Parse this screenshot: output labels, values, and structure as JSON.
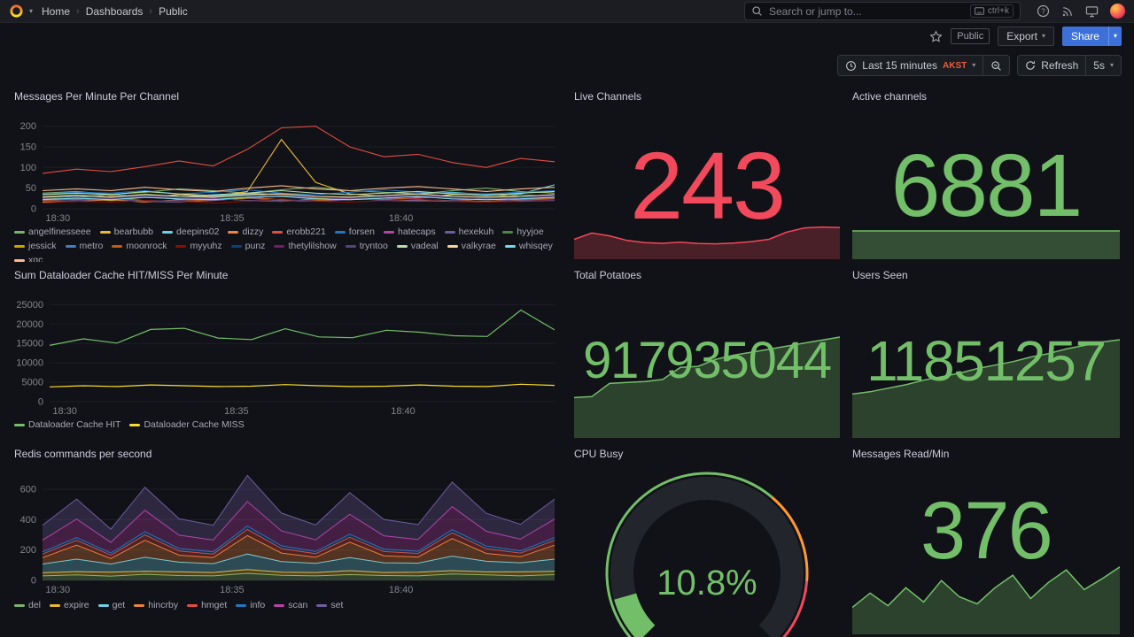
{
  "nav": {
    "breadcrumb": [
      "Home",
      "Dashboards",
      "Public"
    ],
    "search_placeholder": "Search or jump to...",
    "search_shortcut": "ctrl+k"
  },
  "subnav": {
    "badge": "Public",
    "export": "Export",
    "share": "Share"
  },
  "toolbar": {
    "time_range": "Last 15 minutes",
    "timezone": "AKST",
    "refresh": "Refresh",
    "interval": "5s"
  },
  "panels": {
    "messages": {
      "title": "Messages Per Minute Per Channel",
      "chart": {
        "type": "line",
        "axis": true,
        "padL": 32,
        "ymin": 0,
        "ymax": 210,
        "lw": 1.1,
        "yticks": [
          {
            "v": 0,
            "l": "0"
          },
          {
            "v": 50,
            "l": "50"
          },
          {
            "v": 100,
            "l": "100"
          },
          {
            "v": 150,
            "l": "150"
          },
          {
            "v": 200,
            "l": "200"
          }
        ],
        "xticks": [
          {
            "f": 0.03,
            "l": "18:30"
          },
          {
            "f": 0.37,
            "l": "18:35"
          },
          {
            "f": 0.7,
            "l": "18:40"
          }
        ],
        "series": [
          {
            "name": "angelfinesseee",
            "color": "#7EB26D",
            "values": [
              38,
              42,
              35,
              40,
              48,
              44,
              38,
              46,
              52,
              44,
              40,
              36,
              44,
              50,
              42,
              38
            ]
          },
          {
            "name": "bearbubb",
            "color": "#EAB839",
            "values": [
              26,
              22,
              30,
              28,
              34,
              30,
              42,
              168,
              64,
              36,
              30,
              28,
              34,
              36,
              30,
              26
            ]
          },
          {
            "name": "deepins02",
            "color": "#6ED0E0",
            "values": [
              30,
              28,
              34,
              30,
              28,
              34,
              38,
              34,
              30,
              28,
              32,
              36,
              40,
              34,
              36,
              58
            ]
          },
          {
            "name": "dizzy",
            "color": "#EF843C",
            "values": [
              16,
              18,
              22,
              16,
              22,
              26,
              20,
              18,
              24,
              28,
              22,
              20,
              18,
              26,
              30,
              28
            ]
          },
          {
            "name": "erobb221",
            "color": "#E24D42",
            "values": [
              86,
              96,
              90,
              102,
              116,
              104,
              144,
              196,
              200,
              150,
              126,
              132,
              112,
              100,
              122,
              114
            ]
          },
          {
            "name": "forsen",
            "color": "#1F78C1",
            "values": [
              36,
              40,
              38,
              44,
              36,
              40,
              46,
              38,
              34,
              40,
              46,
              40,
              38,
              36,
              40,
              44
            ]
          },
          {
            "name": "hatecaps",
            "color": "#BA43A9",
            "values": [
              24,
              22,
              28,
              30,
              26,
              24,
              28,
              34,
              28,
              24,
              22,
              26,
              30,
              28,
              24,
              22
            ]
          },
          {
            "name": "hexekuh",
            "color": "#705DA0",
            "values": [
              18,
              20,
              24,
              18,
              16,
              20,
              26,
              20,
              18,
              22,
              26,
              20,
              18,
              16,
              20,
              24
            ]
          },
          {
            "name": "hyyjoe",
            "color": "#508642",
            "values": [
              30,
              34,
              28,
              36,
              30,
              28,
              32,
              38,
              30,
              28,
              32,
              36,
              30,
              28,
              34,
              30
            ]
          },
          {
            "name": "jessick",
            "color": "#CCA300",
            "values": [
              22,
              26,
              20,
              28,
              24,
              22,
              26,
              32,
              26,
              22,
              26,
              30,
              24,
              22,
              26,
              28
            ]
          },
          {
            "name": "metro",
            "color": "#447EBC",
            "values": [
              28,
              30,
              34,
              28,
              26,
              30,
              36,
              30,
              28,
              26,
              30,
              34,
              28,
              26,
              30,
              34
            ]
          },
          {
            "name": "moonrock",
            "color": "#C15C17",
            "values": [
              20,
              24,
              26,
              20,
              18,
              22,
              28,
              22,
              20,
              24,
              28,
              22,
              20,
              18,
              22,
              26
            ]
          },
          {
            "name": "myyuhz",
            "color": "#890F02",
            "values": [
              14,
              18,
              16,
              20,
              18,
              14,
              18,
              24,
              18,
              16,
              20,
              24,
              18,
              16,
              18,
              22
            ]
          },
          {
            "name": "punz",
            "color": "#0A437C",
            "values": [
              26,
              28,
              26,
              32,
              28,
              26,
              28,
              34,
              28,
              26,
              30,
              34,
              28,
              26,
              28,
              32
            ]
          },
          {
            "name": "thetylilshow",
            "color": "#6D1F62",
            "values": [
              22,
              26,
              24,
              30,
              26,
              22,
              28,
              34,
              28,
              24,
              28,
              32,
              26,
              22,
              26,
              30
            ]
          },
          {
            "name": "tryntoo",
            "color": "#584477",
            "values": [
              18,
              20,
              24,
              18,
              20,
              26,
              20,
              18,
              22,
              26,
              20,
              18,
              20,
              24,
              18,
              20
            ]
          },
          {
            "name": "vadeal",
            "color": "#B7DBAB",
            "values": [
              34,
              38,
              34,
              42,
              36,
              32,
              38,
              44,
              38,
              34,
              38,
              42,
              36,
              32,
              38,
              42
            ]
          },
          {
            "name": "valkyrae",
            "color": "#F4D598",
            "values": [
              28,
              32,
              28,
              34,
              30,
              28,
              34,
              36,
              30,
              28,
              32,
              36,
              30,
              28,
              30,
              34
            ]
          },
          {
            "name": "whisqey",
            "color": "#70DBED",
            "values": [
              22,
              26,
              22,
              28,
              24,
              22,
              28,
              30,
              24,
              22,
              26,
              30,
              24,
              22,
              24,
              28
            ]
          },
          {
            "name": "xqc",
            "color": "#F9BA8F",
            "values": [
              44,
              48,
              44,
              52,
              46,
              42,
              50,
              56,
              48,
              44,
              50,
              54,
              48,
              42,
              48,
              52
            ]
          }
        ]
      }
    },
    "live_channels": {
      "title": "Live Channels",
      "value": "243",
      "color": "#F2495C",
      "spark": {
        "type": "line",
        "fill": true,
        "fillOpacity": 0.25,
        "lw": 1.5,
        "ymin": 130,
        "ymax": 245,
        "series": [
          {
            "color": "#F2495C",
            "values": [
              200,
              222,
              212,
              196,
              188,
              186,
              190,
              185,
              184,
              187,
              192,
              200,
              225,
              240,
              243,
              241
            ]
          }
        ]
      }
    },
    "active_channels": {
      "title": "Active channels",
      "value": "6881",
      "color": "#73BF69",
      "spark": {
        "type": "line",
        "fill": true,
        "fillOpacity": 0.35,
        "lw": 1.5,
        "ymin": 0,
        "ymax": 7300,
        "series": [
          {
            "color": "#73BF69",
            "values": [
              6870,
              6872,
              6868,
              6874,
              6876,
              6871,
              6875,
              6878,
              6874,
              6876,
              6879,
              6877,
              6880,
              6878,
              6881,
              6881
            ]
          }
        ]
      }
    },
    "dataloader": {
      "title": "Sum Dataloader Cache HIT/MISS Per Minute",
      "chart": {
        "type": "line",
        "axis": true,
        "padL": 40,
        "ymin": 0,
        "ymax": 26000,
        "lw": 1.2,
        "yticks": [
          {
            "v": 0,
            "l": "0"
          },
          {
            "v": 5000,
            "l": "5000"
          },
          {
            "v": 10000,
            "l": "10000"
          },
          {
            "v": 15000,
            "l": "15000"
          },
          {
            "v": 20000,
            "l": "20000"
          },
          {
            "v": 25000,
            "l": "25000"
          }
        ],
        "xticks": [
          {
            "f": 0.03,
            "l": "18:30"
          },
          {
            "f": 0.37,
            "l": "18:35"
          },
          {
            "f": 0.7,
            "l": "18:40"
          }
        ],
        "series": [
          {
            "name": "Dataloader Cache HIT",
            "color": "#73BF69",
            "values": [
              14500,
              16200,
              15100,
              18600,
              18900,
              16400,
              16000,
              18800,
              16700,
              16500,
              18400,
              17900,
              17000,
              16800,
              23600,
              18500
            ]
          },
          {
            "name": "Dataloader Cache MISS",
            "color": "#FADE2A",
            "values": [
              3800,
              4100,
              3900,
              4300,
              4100,
              3900,
              4000,
              4400,
              4100,
              3900,
              4000,
              4300,
              4000,
              3900,
              4500,
              4200
            ]
          }
        ]
      }
    },
    "potatoes": {
      "title": "Total Potatoes",
      "value": "917935044",
      "color": "#73BF69",
      "spark": {
        "type": "line",
        "fill": true,
        "fillOpacity": 0.28,
        "lw": 1.5,
        "ymin": 818,
        "ymax": 918,
        "series": [
          {
            "color": "#73BF69",
            "values": [
              858,
              859,
              872,
              873,
              874,
              876,
              888,
              889,
              896,
              900,
              903,
              906,
              909,
              912,
              915,
              918
            ]
          }
        ]
      }
    },
    "users": {
      "title": "Users Seen",
      "value": "11851257",
      "color": "#73BF69",
      "spark": {
        "type": "line",
        "fill": true,
        "fillOpacity": 0.28,
        "lw": 1.5,
        "ymin": 11.0,
        "ymax": 11.85,
        "series": [
          {
            "color": "#73BF69",
            "values": [
              11.38,
              11.4,
              11.43,
              11.46,
              11.5,
              11.53,
              11.56,
              11.6,
              11.63,
              11.66,
              11.7,
              11.73,
              11.77,
              11.8,
              11.83,
              11.85
            ]
          }
        ]
      }
    },
    "redis": {
      "title": "Redis commands per second",
      "chart": {
        "type": "stacked",
        "axis": true,
        "padL": 32,
        "ymin": 0,
        "ymax": 700,
        "fillOpacity": 0.3,
        "yticks": [
          {
            "v": 0,
            "l": "0"
          },
          {
            "v": 200,
            "l": "200"
          },
          {
            "v": 400,
            "l": "400"
          },
          {
            "v": 600,
            "l": "600"
          }
        ],
        "xticks": [
          {
            "f": 0.03,
            "l": "18:30"
          },
          {
            "f": 0.37,
            "l": "18:35"
          },
          {
            "f": 0.7,
            "l": "18:40"
          }
        ],
        "series": [
          {
            "name": "del",
            "color": "#7EB26D",
            "values": [
              30,
              36,
              28,
              40,
              32,
              30,
              46,
              34,
              30,
              38,
              32,
              30,
              42,
              36,
              30,
              38
            ]
          },
          {
            "name": "expire",
            "color": "#EAB839",
            "values": [
              20,
              22,
              26,
              20,
              24,
              22,
              26,
              20,
              22,
              26,
              20,
              24,
              22,
              20,
              26,
              22
            ]
          },
          {
            "name": "get",
            "color": "#6ED0E0",
            "values": [
              58,
              82,
              54,
              92,
              64,
              58,
              102,
              70,
              60,
              86,
              64,
              60,
              96,
              70,
              60,
              80
            ]
          },
          {
            "name": "hincrby",
            "color": "#EF843C",
            "values": [
              42,
              92,
              36,
              112,
              46,
              40,
              122,
              56,
              40,
              102,
              46,
              40,
              116,
              52,
              40,
              92
            ]
          },
          {
            "name": "hmget",
            "color": "#E24D42",
            "values": [
              24,
              32,
              22,
              36,
              28,
              24,
              40,
              30,
              24,
              32,
              28,
              24,
              38,
              30,
              24,
              32
            ]
          },
          {
            "name": "info",
            "color": "#1F78C1",
            "values": [
              14,
              18,
              14,
              20,
              16,
              14,
              22,
              18,
              14,
              20,
              16,
              14,
              20,
              18,
              14,
              18
            ]
          },
          {
            "name": "scan",
            "color": "#BA43A9",
            "values": [
              78,
              122,
              70,
              142,
              88,
              78,
              162,
              98,
              78,
              132,
              88,
              78,
              152,
              98,
              78,
              122
            ]
          },
          {
            "name": "set",
            "color": "#705DA0",
            "values": [
              98,
              132,
              88,
              152,
              108,
              98,
              172,
              118,
              98,
              142,
              108,
              98,
              162,
              118,
              98,
              132
            ]
          }
        ]
      }
    },
    "cpu": {
      "title": "CPU Busy",
      "gauge": {
        "value": 10.8,
        "min": 0,
        "max": 100,
        "display": "10.8%",
        "color": "#73BF69",
        "track": "#22252b",
        "thresholds": [
          {
            "to": 65,
            "color": "#73BF69"
          },
          {
            "to": 85,
            "color": "#FF9830"
          },
          {
            "to": 100,
            "color": "#F2495C"
          }
        ]
      }
    },
    "messages_read": {
      "title": "Messages Read/Min",
      "value": "376",
      "color": "#73BF69",
      "spark": {
        "type": "line",
        "fill": true,
        "fillOpacity": 0.28,
        "lw": 1.5,
        "ymin": 0,
        "ymax": 390,
        "series": [
          {
            "color": "#73BF69",
            "values": [
              150,
              230,
              160,
              260,
              180,
              300,
              210,
              170,
              260,
              330,
              200,
              290,
              360,
              250,
              310,
              376
            ]
          }
        ]
      }
    }
  }
}
